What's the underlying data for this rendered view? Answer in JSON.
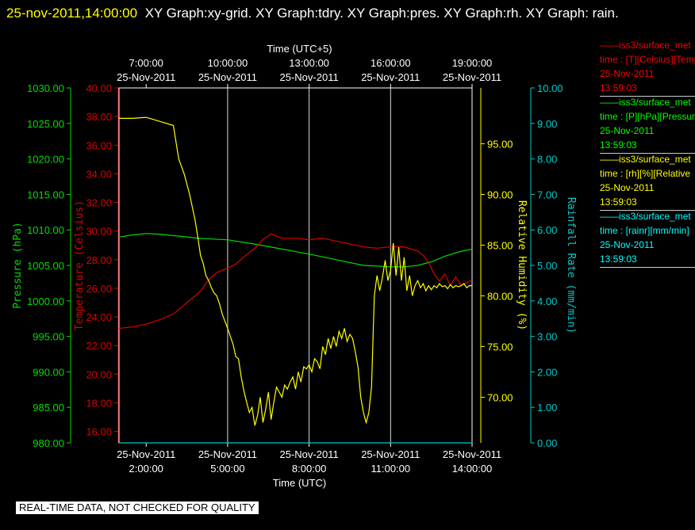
{
  "header": {
    "timestamp": "25-nov-2011,14:00:00",
    "graphs": "XY Graph:xy-grid.  XY Graph:tdry.  XY Graph:pres.  XY Graph:rh.  XY Graph: rain."
  },
  "chart_data": {
    "type": "line",
    "top_axis_label": "Time (UTC+5)",
    "bottom_axis_label": "Time (UTC)",
    "top_ticks": [
      {
        "time": "7:00:00",
        "date": "25-Nov-2011"
      },
      {
        "time": "10:00:00",
        "date": "25-Nov-2011"
      },
      {
        "time": "13:00:00",
        "date": "25-Nov-2011"
      },
      {
        "time": "16:00:00",
        "date": "25-Nov-2011"
      },
      {
        "time": "19:00:00",
        "date": "25-Nov-2011"
      }
    ],
    "bottom_ticks": [
      {
        "date": "25-Nov-2011",
        "time": "2:00:00"
      },
      {
        "date": "25-Nov-2011",
        "time": "5:00:00"
      },
      {
        "date": "25-Nov-2011",
        "time": "8:00:00"
      },
      {
        "date": "25-Nov-2011",
        "time": "11:00:00"
      },
      {
        "date": "25-Nov-2011",
        "time": "14:00:00"
      }
    ],
    "xlim_hours_utc": [
      1.0,
      14.0
    ],
    "grid_hours_utc": [
      5,
      8,
      11
    ],
    "axes": {
      "pressure": {
        "label": "Pressure (hPa)",
        "color": "#00dd00",
        "ylim": [
          980,
          1030
        ],
        "ticks": [
          "1030.00",
          "1025.00",
          "1020.00",
          "1015.00",
          "1010.00",
          "1005.00",
          "1000.00",
          "995.00",
          "990.00",
          "985.00",
          "980.00"
        ]
      },
      "temperature": {
        "label": "Temperature (Celsius)",
        "color": "#dd0000",
        "ylim": [
          15.2,
          40
        ],
        "ticks": [
          "40.00",
          "38.00",
          "36.00",
          "34.00",
          "32.00",
          "30.00",
          "28.00",
          "26.00",
          "24.00",
          "22.00",
          "20.00",
          "18.00",
          "16.00"
        ]
      },
      "humidity": {
        "label": "Relative Humidity (%)",
        "color": "#ffff00",
        "ylim": [
          65.5,
          100.5
        ],
        "ticks": [
          "95.00",
          "90.00",
          "85.00",
          "80.00",
          "75.00",
          "70.00"
        ]
      },
      "rain": {
        "label": "Rainfall Rate (mm/min)",
        "color": "#00cccc",
        "ylim": [
          0,
          10
        ],
        "ticks": [
          "10.00",
          "9.00",
          "8.00",
          "7.00",
          "6.00",
          "5.00",
          "4.00",
          "3.00",
          "2.00",
          "1.00",
          "0.00"
        ]
      }
    },
    "series": [
      {
        "name": "pressure",
        "axis": "pressure",
        "x": [
          1.0,
          1.5,
          2.0,
          2.5,
          3.0,
          4.0,
          5.0,
          6.0,
          7.0,
          8.0,
          9.0,
          10.0,
          11.0,
          11.5,
          12.0,
          12.5,
          13.0,
          13.5,
          14.0
        ],
        "y": [
          1009.0,
          1009.3,
          1009.5,
          1009.4,
          1009.2,
          1008.8,
          1008.6,
          1008.0,
          1007.3,
          1006.6,
          1005.8,
          1005.0,
          1004.8,
          1004.8,
          1005.0,
          1005.5,
          1006.3,
          1006.9,
          1007.3
        ]
      },
      {
        "name": "temperature",
        "axis": "temperature",
        "x": [
          1.0,
          1.5,
          2.0,
          2.5,
          3.0,
          3.5,
          4.0,
          4.3,
          4.6,
          5.0,
          5.3,
          5.6,
          6.0,
          6.3,
          6.6,
          7.0,
          7.5,
          8.0,
          8.5,
          9.0,
          9.5,
          10.0,
          10.5,
          11.0,
          11.5,
          12.0,
          12.2,
          12.4,
          12.6,
          12.8,
          13.0,
          13.2,
          13.4,
          13.6,
          13.8,
          14.0
        ],
        "y": [
          23.2,
          23.3,
          23.5,
          23.8,
          24.2,
          25.0,
          25.8,
          26.6,
          27.1,
          27.4,
          27.7,
          28.2,
          28.8,
          29.4,
          29.8,
          29.5,
          29.5,
          29.4,
          29.5,
          29.3,
          29.1,
          28.9,
          28.8,
          28.9,
          28.9,
          28.6,
          28.3,
          27.8,
          27.0,
          26.5,
          27.0,
          26.2,
          26.8,
          26.2,
          26.4,
          26.6
        ]
      },
      {
        "name": "humidity",
        "axis": "humidity",
        "x": [
          1.0,
          1.5,
          2.0,
          2.5,
          3.0,
          3.2,
          3.4,
          3.6,
          3.8,
          3.9,
          4.0,
          4.1,
          4.2,
          4.3,
          4.4,
          4.5,
          4.6,
          4.7,
          4.8,
          4.9,
          5.0,
          5.1,
          5.2,
          5.3,
          5.4,
          5.5,
          5.6,
          5.7,
          5.8,
          5.9,
          6.0,
          6.1,
          6.2,
          6.3,
          6.4,
          6.5,
          6.6,
          6.7,
          6.8,
          6.9,
          7.0,
          7.1,
          7.2,
          7.3,
          7.4,
          7.5,
          7.6,
          7.7,
          7.8,
          7.9,
          8.0,
          8.1,
          8.2,
          8.3,
          8.4,
          8.5,
          8.6,
          8.7,
          8.8,
          8.9,
          9.0,
          9.1,
          9.2,
          9.3,
          9.4,
          9.5,
          9.6,
          9.7,
          9.8,
          9.9,
          10.0,
          10.1,
          10.2,
          10.3,
          10.4,
          10.5,
          10.6,
          10.7,
          10.8,
          10.9,
          11.0,
          11.1,
          11.2,
          11.3,
          11.4,
          11.5,
          11.6,
          11.7,
          11.8,
          11.9,
          12.0,
          12.1,
          12.2,
          12.3,
          12.4,
          12.5,
          12.6,
          12.7,
          12.8,
          12.9,
          13.0,
          13.1,
          13.2,
          13.3,
          13.4,
          13.5,
          13.6,
          13.7,
          13.8,
          13.9,
          14.0
        ],
        "y": [
          97.5,
          97.5,
          97.6,
          97.2,
          96.8,
          93.5,
          92.0,
          90.0,
          87.5,
          85.8,
          84.0,
          83.2,
          82.0,
          81.5,
          80.8,
          80.3,
          80.0,
          79.2,
          78.2,
          77.5,
          76.8,
          76.0,
          75.2,
          74.0,
          73.8,
          72.0,
          70.6,
          69.5,
          68.5,
          69.0,
          67.2,
          68.2,
          70.0,
          67.5,
          68.8,
          70.5,
          67.8,
          69.5,
          71.0,
          70.5,
          70.0,
          71.2,
          70.8,
          71.5,
          72.0,
          70.8,
          72.5,
          71.5,
          73.0,
          72.8,
          73.2,
          72.5,
          73.8,
          73.5,
          72.8,
          75.0,
          74.2,
          75.8,
          74.8,
          76.0,
          75.0,
          76.5,
          75.8,
          76.8,
          75.5,
          76.2,
          75.8,
          74.5,
          73.0,
          70.0,
          68.5,
          67.5,
          68.5,
          71.0,
          80.0,
          82.0,
          80.5,
          81.8,
          83.5,
          81.5,
          82.5,
          85.2,
          82.0,
          84.8,
          81.5,
          83.8,
          80.5,
          82.0,
          80.0,
          81.0,
          81.5,
          80.8,
          81.2,
          80.5,
          81.0,
          80.6,
          81.0,
          80.8,
          81.2,
          80.9,
          81.0,
          80.7,
          81.1,
          80.8,
          81.0,
          80.9,
          81.0,
          81.2,
          80.8,
          81.0,
          81.0
        ]
      },
      {
        "name": "rain",
        "axis": "rain",
        "x": [
          1.0,
          14.0
        ],
        "y": [
          0.0,
          0.0
        ]
      }
    ]
  },
  "legend": [
    {
      "line1": "——iss3/surface_met",
      "line2": "time : [T][Celsius][Temp",
      "line3": "25-Nov-2011",
      "line4": "13:59:03",
      "color": "#ff0000"
    },
    {
      "line1": "——iss3/surface_met",
      "line2": "time : [P][hPa][Pressure",
      "line3": "25-Nov-2011",
      "line4": "13:59:03",
      "color": "#00ff00"
    },
    {
      "line1": "——iss3/surface_met",
      "line2": "time : [rh][%][Relative",
      "line3": "25-Nov-2011",
      "line4": "13:59:03",
      "color": "#ffff00"
    },
    {
      "line1": "——iss3/surface_met",
      "line2": "time : [rainr][mm/min]",
      "line3": "25-Nov-2011",
      "line4": "13:59:03",
      "color": "#00ffff"
    }
  ],
  "footer": {
    "stamp": "REAL-TIME DATA, NOT CHECKED FOR QUALITY"
  }
}
